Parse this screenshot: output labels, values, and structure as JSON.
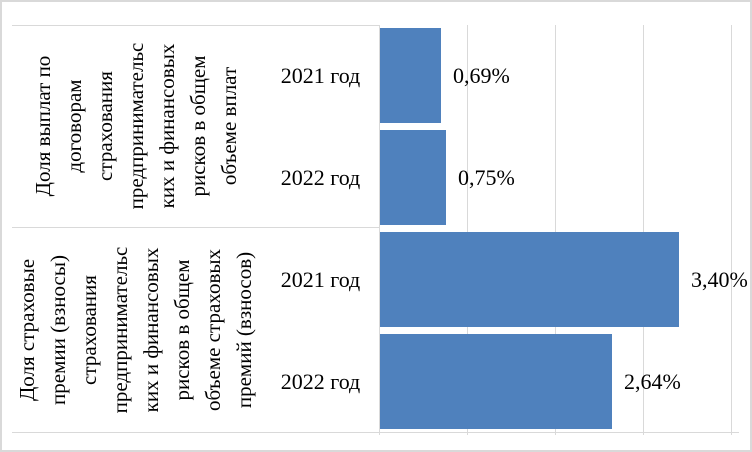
{
  "chart_data": {
    "type": "bar",
    "orientation": "horizontal",
    "title": "",
    "xlabel": "",
    "ylabel": "",
    "xlim": [
      0,
      4
    ],
    "gridline_values": [
      1,
      2,
      3,
      4
    ],
    "grid": true,
    "legend": "none",
    "bar_color": "#4f81bd",
    "gridline_color": "#d9d9d9",
    "value_unit": "%",
    "groups": [
      {
        "name": "Доля выплат по договорам страхования предпринимательских и финансовых рисков в общем объеме вплат",
        "label_lines": [
          "Доля выплат по",
          "договорам",
          "страхования",
          "предпринимательс",
          "ких и финансовых",
          "рисков в общем",
          "объеме вплат"
        ],
        "bars": [
          {
            "category": "2021 год",
            "value": 0.69,
            "label": "0,69%"
          },
          {
            "category": "2022 год",
            "value": 0.75,
            "label": "0,75%"
          }
        ]
      },
      {
        "name": "Доля страховые премии (взносы) страхования предпринимательских и финансовых рисков в общем объеме страховых премий (взносов)",
        "label_lines": [
          "Доля страховые",
          "премии (взносы)",
          "страхования",
          "предпринимательс",
          "ких и финансовых",
          "рисков в общем",
          "объеме страховых",
          "премий (взносов)"
        ],
        "bars": [
          {
            "category": "2021 год",
            "value": 3.4,
            "label": "3,40%"
          },
          {
            "category": "2022 год",
            "value": 2.64,
            "label": "2,64%"
          }
        ]
      }
    ]
  }
}
